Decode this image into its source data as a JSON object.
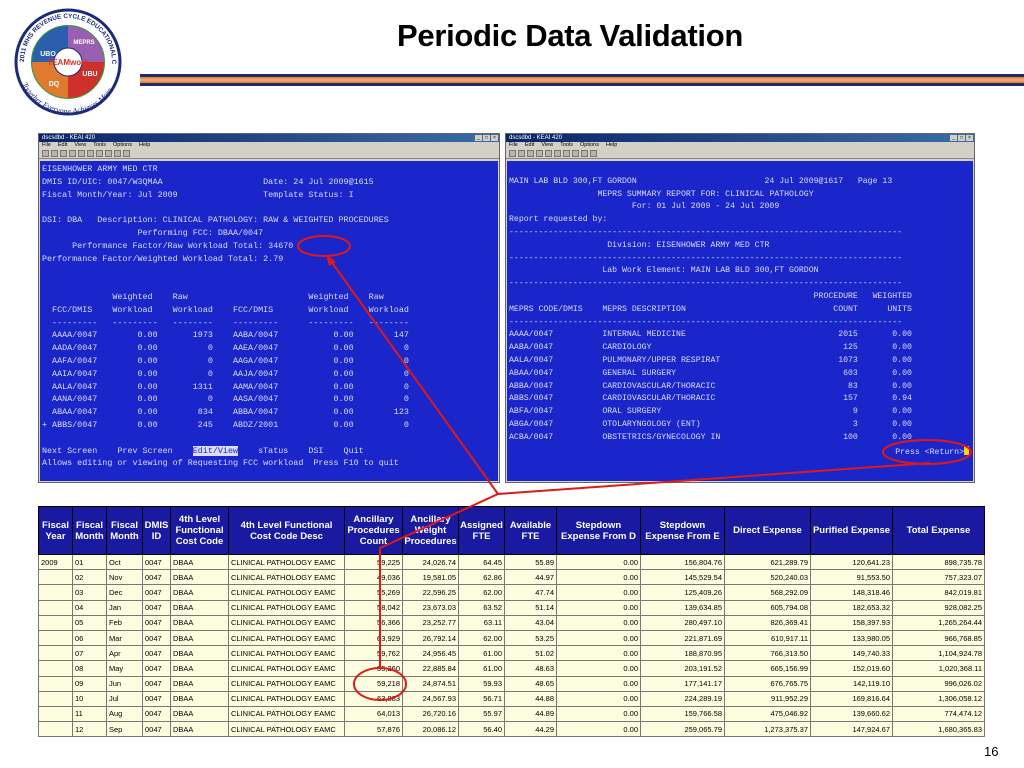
{
  "slide": {
    "title": "Periodic Data Validation",
    "page_number": "16"
  },
  "logo": {
    "ring_text": "2011 MHS REVENUE CYCLE EDUCATIONAL CONFERENCE",
    "tagline": "Together Everyone Achieves More",
    "hub": "TEAMwork",
    "segments": [
      "UBO",
      "MEPRS",
      "UBU",
      "DQ"
    ],
    "colors": {
      "ring": "#1c2a7a",
      "ubo": "#2a5fb0",
      "meprs": "#9a5fb0",
      "ubu": "#d0302a",
      "dq": "#e07a2e",
      "green": "#3a9a3a"
    }
  },
  "left_window": {
    "title": "dscsdbd - KEAI 420",
    "menu": [
      "File",
      "Edit",
      "View",
      "Tools",
      "Options",
      "Help"
    ],
    "lines": [
      "EISENHOWER ARMY MED CTR",
      "DMIS ID/UIC: 0047/W3QMAA                    Date: 24 Jul 2009@1615",
      "Fiscal Month/Year: Jul 2009                 Template Status: I",
      "",
      "DSI: DBA   Description: CLINICAL PATHOLOGY: RAW & WEIGHTED PROCEDURES",
      "                   Performing FCC: DBAA/0047",
      "      Performance Factor/Raw Workload Total: 34670",
      "Performance Factor/Weighted Workload Total: 2.79",
      "",
      "",
      "              Weighted    Raw                        Weighted    Raw",
      "  FCC/DMIS    Workload    Workload    FCC/DMIS       Workload    Workload",
      "  ---------   ---------   --------    ---------      ---------   --------",
      "  AAAA/0047        0.00       1973    AABA/0047           0.00        147",
      "  AADA/0047        0.00          0    AAEA/0047           0.00          0",
      "  AAFA/0047        0.00          0    AAGA/0047           0.00          0",
      "  AAIA/0047        0.00          0    AAJA/0047           0.00          0",
      "  AALA/0047        0.00       1311    AAMA/0047           0.00          0",
      "  AANA/0047        0.00          0    AASA/0047           0.00          0",
      "  ABAA/0047        0.00        834    ABBA/0047           0.00        123",
      "+ ABBS/0047        0.00        245    ABDZ/2001           0.00          0",
      ""
    ],
    "menu_line": {
      "before": "Next Screen    Prev Screen    ",
      "selected": "Edit/View",
      "after": "    sTatus    DSI    Quit"
    },
    "status_line": "Allows editing or viewing of Requesting FCC workload  Press F10 to quit"
  },
  "right_window": {
    "title": "dscsdbd - KEAI 420",
    "menu": [
      "File",
      "Edit",
      "View",
      "Tools",
      "Options",
      "Help"
    ],
    "lines": [
      "",
      "MAIN LAB BLD 300,FT GORDON                          24 Jul 2009@1617   Page 13",
      "                  MEPRS SUMMARY REPORT FOR: CLINICAL PATHOLOGY",
      "                         For: 01 Jul 2009 - 24 Jul 2009",
      "Report requested by:",
      "--------------------------------------------------------------------------------",
      "                    Division: EISENHOWER ARMY MED CTR",
      "--------------------------------------------------------------------------------",
      "                   Lab Work Element: MAIN LAB BLD 300,FT GORDON",
      "--------------------------------------------------------------------------------",
      "                                                              PROCEDURE   WEIGHTED",
      "MEPRS CODE/DMIS    MEPRS DESCRIPTION                              COUNT      UNITS",
      "--------------------------------------------------------------------------------",
      "AAAA/0047          INTERNAL MEDICINE                               2015       0.00",
      "AABA/0047          CARDIOLOGY                                       125       0.00",
      "AALA/0047          PULMONARY/UPPER RESPIRAT                        1073       0.00",
      "ABAA/0047          GENERAL SURGERY                                  603       0.00",
      "ABBA/0047          CARDIOVASCULAR/THORACIC                           83       0.00",
      "ABBS/0047          CARDIOVASCULAR/THORACIC                          157       0.94",
      "ABFA/0047          ORAL SURGERY                                       9       0.00",
      "ABGA/0047          OTOLARYNGOLOGY (ENT)                               3       0.00",
      "ACBA/0047          OBSTETRICS/GYNECOLOGY IN                         100       0.00"
    ],
    "prompt": "Press <Return>"
  },
  "table": {
    "headers": [
      "Fiscal Year",
      "Fiscal Month",
      "Fiscal Month",
      "DMIS ID",
      "4th Level Functional Cost Code",
      "4th Level Functional Cost Code Desc",
      "Ancillary Procedures Count",
      "Ancillary Weight Procedures",
      "Assigned FTE",
      "Available FTE",
      "Stepdown Expense From D",
      "Stepdown Expense From E",
      "Direct Expense",
      "Purified Expense",
      "Total Expense"
    ],
    "rows": [
      [
        "2009",
        "01",
        "Oct",
        "0047",
        "DBAA",
        "CLINICAL PATHOLOGY EAMC",
        "59,225",
        "24,026.74",
        "64.45",
        "55.89",
        "0.00",
        "156,804.76",
        "621,289.79",
        "120,641.23",
        "898,735.78"
      ],
      [
        "",
        "02",
        "Nov",
        "0047",
        "DBAA",
        "CLINICAL PATHOLOGY EAMC",
        "49,036",
        "19,581.05",
        "62.86",
        "44.97",
        "0.00",
        "145,529.54",
        "520,240.03",
        "91,553.50",
        "757,323.07"
      ],
      [
        "",
        "03",
        "Dec",
        "0047",
        "DBAA",
        "CLINICAL PATHOLOGY EAMC",
        "55,269",
        "22,596.25",
        "62.00",
        "47.74",
        "0.00",
        "125,409.26",
        "568,292.09",
        "148,318.46",
        "842,019.81"
      ],
      [
        "",
        "04",
        "Jan",
        "0047",
        "DBAA",
        "CLINICAL PATHOLOGY EAMC",
        "58,042",
        "23,673.03",
        "63.52",
        "51.14",
        "0.00",
        "139,634.85",
        "605,794.08",
        "182,653.32",
        "928,082.25"
      ],
      [
        "",
        "05",
        "Feb",
        "0047",
        "DBAA",
        "CLINICAL PATHOLOGY EAMC",
        "56,366",
        "23,252.77",
        "63.11",
        "43.04",
        "0.00",
        "280,497.10",
        "826,369.41",
        "158,397.93",
        "1,265,264.44"
      ],
      [
        "",
        "06",
        "Mar",
        "0047",
        "DBAA",
        "CLINICAL PATHOLOGY EAMC",
        "63,929",
        "26,792.14",
        "62.00",
        "53.25",
        "0.00",
        "221,871.69",
        "610,917.11",
        "133,980.05",
        "966,768.85"
      ],
      [
        "",
        "07",
        "Apr",
        "0047",
        "DBAA",
        "CLINICAL PATHOLOGY EAMC",
        "59,762",
        "24,956.45",
        "61.00",
        "51.02",
        "0.00",
        "188,870.95",
        "766,313.50",
        "149,740.33",
        "1,104,924.78"
      ],
      [
        "",
        "08",
        "May",
        "0047",
        "DBAA",
        "CLINICAL PATHOLOGY EAMC",
        "55,260",
        "22,885.84",
        "61.00",
        "48.63",
        "0.00",
        "203,191.52",
        "665,156.99",
        "152,019.60",
        "1,020,368.11"
      ],
      [
        "",
        "09",
        "Jun",
        "0047",
        "DBAA",
        "CLINICAL PATHOLOGY EAMC",
        "59,218",
        "24,874.51",
        "59.93",
        "48.65",
        "0.00",
        "177,141.17",
        "676,765.75",
        "142,119.10",
        "996,026.02"
      ],
      [
        "",
        "10",
        "Jul",
        "0047",
        "DBAA",
        "CLINICAL PATHOLOGY EAMC",
        "63,883",
        "24,567.93",
        "56.71",
        "44.88",
        "0.00",
        "224,289.19",
        "911,952.29",
        "169,816.64",
        "1,306,058.12"
      ],
      [
        "",
        "11",
        "Aug",
        "0047",
        "DBAA",
        "CLINICAL PATHOLOGY EAMC",
        "64,013",
        "26,720.16",
        "55.97",
        "44.89",
        "0.00",
        "159,766.58",
        "475,046.92",
        "139,660.62",
        "774,474.12"
      ],
      [
        "",
        "12",
        "Sep",
        "0047",
        "DBAA",
        "CLINICAL PATHOLOGY EAMC",
        "57,876",
        "20,086.12",
        "56.40",
        "44.29",
        "0.00",
        "259,065.79",
        "1,273,375.37",
        "147,924.67",
        "1,680,365.83"
      ]
    ]
  },
  "annotation_color": "#e01818"
}
